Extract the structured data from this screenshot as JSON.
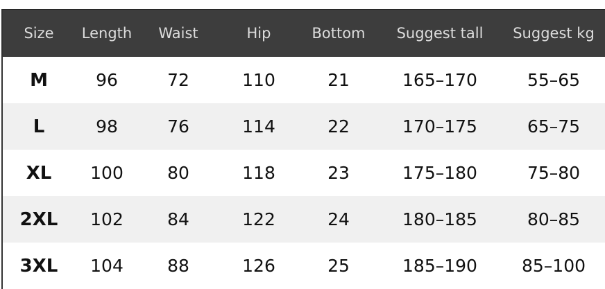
{
  "table": {
    "headers": [
      "Size",
      "Length",
      "Waist",
      "Hip",
      "Bottom",
      "Suggest tall",
      "Suggest kg"
    ],
    "rows": [
      [
        "M",
        "96",
        "72",
        "110",
        "21",
        "165–170",
        "55–65"
      ],
      [
        "L",
        "98",
        "76",
        "114",
        "22",
        "170–175",
        "65–75"
      ],
      [
        "XL",
        "100",
        "80",
        "118",
        "23",
        "175–180",
        "75–80"
      ],
      [
        "2XL",
        "102",
        "84",
        "122",
        "24",
        "180–185",
        "80–85"
      ],
      [
        "3XL",
        "104",
        "88",
        "126",
        "25",
        "185–190",
        "85–100"
      ]
    ]
  },
  "colors": {
    "header_bg": "#3d3d3d",
    "header_text": "#dddddd",
    "alt_row": "#f0f0f0"
  }
}
